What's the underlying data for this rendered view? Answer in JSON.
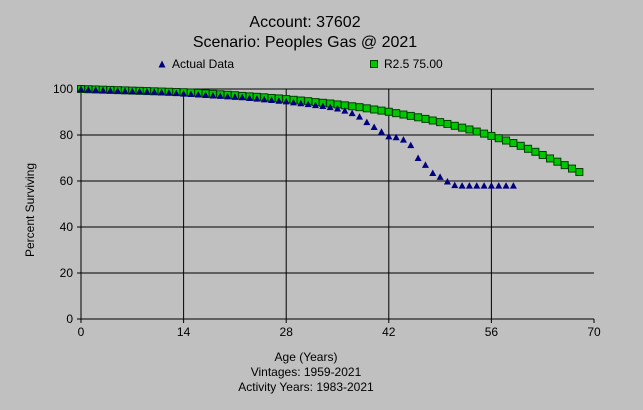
{
  "colors": {
    "background": "#c0c0c0",
    "grid": "#000000",
    "actual_marker": "#000080",
    "curve_marker": "#00c800",
    "curve_marker_edge": "#004000"
  },
  "chart_data": {
    "type": "scatter",
    "title": "Account: 37602",
    "subtitle": "Scenario: Peoples Gas @ 2021",
    "xlabel": "Age (Years)",
    "ylabel": "Percent Surviving",
    "notes": [
      "Vintages: 1959-2021",
      "Activity Years: 1983-2021"
    ],
    "xlim": [
      0,
      70
    ],
    "ylim": [
      0,
      100
    ],
    "xticks": [
      0,
      14,
      28,
      42,
      56,
      70
    ],
    "yticks": [
      0,
      20,
      40,
      60,
      80,
      100
    ],
    "grid": true,
    "legend_position": "top",
    "series": [
      {
        "name": "Actual Data",
        "marker": "triangle",
        "color": "#000080",
        "x": [
          0,
          1,
          2,
          3,
          4,
          5,
          6,
          7,
          8,
          9,
          10,
          11,
          12,
          13,
          14,
          15,
          16,
          17,
          18,
          19,
          20,
          21,
          22,
          23,
          24,
          25,
          26,
          27,
          28,
          29,
          30,
          31,
          32,
          33,
          34,
          35,
          36,
          37,
          38,
          39,
          40,
          41,
          42,
          43,
          44,
          45,
          46,
          47,
          48,
          49,
          50,
          51,
          52,
          53,
          54,
          55,
          56,
          57,
          58,
          59
        ],
        "values": [
          100,
          99.8,
          99.6,
          99.5,
          99.4,
          99.3,
          99.2,
          99.1,
          99.0,
          98.9,
          98.8,
          98.6,
          98.4,
          98.2,
          98.0,
          97.8,
          97.6,
          97.4,
          97.2,
          97.0,
          96.8,
          96.6,
          96.4,
          96.1,
          95.8,
          95.5,
          95.2,
          94.9,
          94.6,
          94.2,
          93.8,
          93.4,
          93.0,
          92.6,
          92.1,
          91.5,
          90.6,
          89.5,
          88.0,
          85.6,
          83.5,
          81.4,
          79.4,
          79.0,
          78.0,
          75.6,
          70.0,
          67.0,
          63.5,
          61.8,
          59.8,
          58.2,
          58.0,
          58.0,
          58.0,
          58.0,
          58.0,
          58.0,
          58.0,
          58.0
        ]
      },
      {
        "name": "R2.5 75.00",
        "marker": "square",
        "color": "#00c800",
        "x": [
          0,
          1,
          2,
          3,
          4,
          5,
          6,
          7,
          8,
          9,
          10,
          11,
          12,
          13,
          14,
          15,
          16,
          17,
          18,
          19,
          20,
          21,
          22,
          23,
          24,
          25,
          26,
          27,
          28,
          29,
          30,
          31,
          32,
          33,
          34,
          35,
          36,
          37,
          38,
          39,
          40,
          41,
          42,
          43,
          44,
          45,
          46,
          47,
          48,
          49,
          50,
          51,
          52,
          53,
          54,
          55,
          56,
          57,
          58,
          59,
          60,
          61,
          62,
          63,
          64,
          65,
          66,
          67,
          68
        ],
        "values": [
          100,
          99.9,
          99.8,
          99.7,
          99.6,
          99.5,
          99.4,
          99.3,
          99.2,
          99.1,
          99.0,
          98.9,
          98.8,
          98.7,
          98.6,
          98.5,
          98.3,
          98.1,
          97.9,
          97.7,
          97.5,
          97.3,
          97.0,
          96.8,
          96.6,
          96.4,
          96.1,
          95.9,
          95.6,
          95.3,
          95.0,
          94.7,
          94.3,
          94.0,
          93.7,
          93.3,
          92.9,
          92.5,
          92.1,
          91.6,
          91.1,
          90.6,
          90.1,
          89.5,
          88.9,
          88.3,
          87.7,
          87.0,
          86.3,
          85.6,
          84.8,
          84.0,
          83.2,
          82.4,
          81.5,
          80.6,
          79.6,
          78.6,
          77.6,
          76.5,
          75.3,
          74.0,
          72.7,
          71.3,
          69.8,
          68.4,
          66.9,
          65.4,
          63.9
        ]
      }
    ]
  }
}
